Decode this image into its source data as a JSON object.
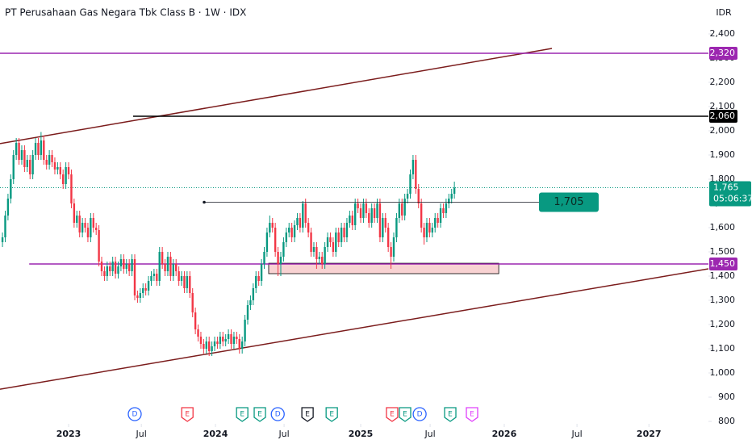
{
  "chart_data": {
    "type": "candlestick",
    "title": "PT Perusahaan Gas Negara Tbk Class B · 1W · IDX",
    "currency": "IDR",
    "up_color": "#089981",
    "down_color": "#f23645",
    "grid": false,
    "xlim": [
      -0.9,
      256.2
    ],
    "ylim": [
      800,
      2540
    ],
    "xticks": [
      {
        "value": 24,
        "label": "2023"
      },
      {
        "value": 50.4,
        "label": "Jul"
      },
      {
        "value": 77.3,
        "label": "2024"
      },
      {
        "value": 102.2,
        "label": "Jul"
      },
      {
        "value": 130,
        "label": "2025"
      },
      {
        "value": 155.2,
        "label": "Jul"
      },
      {
        "value": 182.1,
        "label": "2026"
      },
      {
        "value": 208.5,
        "label": "Jul"
      },
      {
        "value": 234.6,
        "label": "2027"
      }
    ],
    "yticks": [
      800,
      900,
      {
        "value": 1000,
        "label": "1,000"
      },
      {
        "value": 1100,
        "label": "1,100"
      },
      {
        "value": 1200,
        "label": "1,200"
      },
      {
        "value": 1300,
        "label": "1,300"
      },
      {
        "value": 1400,
        "label": "1,400"
      },
      {
        "value": 1500,
        "label": "1,500"
      },
      {
        "value": 1600,
        "label": "1,600"
      },
      {
        "value": 1700,
        "label": "1,700"
      },
      {
        "value": 1800,
        "label": "1,800"
      },
      {
        "value": 1900,
        "label": "1,900"
      },
      {
        "value": 2000,
        "label": "2,000"
      },
      {
        "value": 2100,
        "label": "2,100"
      },
      {
        "value": 2200,
        "label": "2,200"
      },
      {
        "value": 2300,
        "label": "2,300"
      },
      {
        "value": 2400,
        "label": "2,400"
      }
    ],
    "candles": [
      [
        1540,
        1580,
        1520,
        1560
      ],
      [
        1560,
        1670,
        1540,
        1650
      ],
      [
        1650,
        1740,
        1630,
        1720
      ],
      [
        1720,
        1820,
        1700,
        1800
      ],
      [
        1800,
        1920,
        1780,
        1900
      ],
      [
        1900,
        1970,
        1880,
        1950
      ],
      [
        1950,
        1970,
        1860,
        1880
      ],
      [
        1880,
        1940,
        1860,
        1920
      ],
      [
        1920,
        1940,
        1830,
        1850
      ],
      [
        1850,
        1900,
        1830,
        1880
      ],
      [
        1880,
        1900,
        1800,
        1820
      ],
      [
        1820,
        1920,
        1800,
        1900
      ],
      [
        1900,
        1970,
        1880,
        1950
      ],
      [
        1950,
        1970,
        1880,
        1900
      ],
      [
        1900,
        1995,
        1880,
        1960
      ],
      [
        1960,
        1980,
        1860,
        1880
      ],
      [
        1880,
        1900,
        1840,
        1860
      ],
      [
        1860,
        1920,
        1840,
        1900
      ],
      [
        1900,
        1920,
        1850,
        1870
      ],
      [
        1870,
        1890,
        1820,
        1840
      ],
      [
        1840,
        1870,
        1820,
        1850
      ],
      [
        1850,
        1870,
        1800,
        1820
      ],
      [
        1820,
        1840,
        1760,
        1780
      ],
      [
        1780,
        1870,
        1760,
        1850
      ],
      [
        1850,
        1870,
        1800,
        1820
      ],
      [
        1820,
        1840,
        1680,
        1700
      ],
      [
        1700,
        1720,
        1600,
        1620
      ],
      [
        1620,
        1670,
        1600,
        1650
      ],
      [
        1650,
        1670,
        1560,
        1580
      ],
      [
        1580,
        1640,
        1560,
        1620
      ],
      [
        1620,
        1640,
        1580,
        1600
      ],
      [
        1600,
        1620,
        1540,
        1560
      ],
      [
        1560,
        1660,
        1540,
        1640
      ],
      [
        1640,
        1660,
        1580,
        1600
      ],
      [
        1600,
        1620,
        1570,
        1590
      ],
      [
        1590,
        1610,
        1440,
        1460
      ],
      [
        1460,
        1480,
        1400,
        1420
      ],
      [
        1420,
        1440,
        1380,
        1400
      ],
      [
        1400,
        1460,
        1380,
        1440
      ],
      [
        1440,
        1460,
        1400,
        1420
      ],
      [
        1420,
        1480,
        1400,
        1460
      ],
      [
        1460,
        1480,
        1390,
        1410
      ],
      [
        1410,
        1460,
        1390,
        1440
      ],
      [
        1440,
        1490,
        1420,
        1470
      ],
      [
        1470,
        1490,
        1410,
        1430
      ],
      [
        1430,
        1470,
        1410,
        1450
      ],
      [
        1450,
        1470,
        1400,
        1420
      ],
      [
        1420,
        1490,
        1400,
        1470
      ],
      [
        1470,
        1490,
        1300,
        1320
      ],
      [
        1320,
        1340,
        1290,
        1310
      ],
      [
        1310,
        1350,
        1290,
        1330
      ],
      [
        1330,
        1370,
        1310,
        1350
      ],
      [
        1350,
        1370,
        1320,
        1340
      ],
      [
        1340,
        1400,
        1320,
        1380
      ],
      [
        1380,
        1420,
        1360,
        1400
      ],
      [
        1400,
        1430,
        1380,
        1410
      ],
      [
        1410,
        1430,
        1360,
        1380
      ],
      [
        1380,
        1520,
        1360,
        1500
      ],
      [
        1500,
        1520,
        1430,
        1450
      ],
      [
        1450,
        1470,
        1400,
        1420
      ],
      [
        1420,
        1500,
        1400,
        1480
      ],
      [
        1480,
        1500,
        1380,
        1400
      ],
      [
        1400,
        1470,
        1380,
        1450
      ],
      [
        1450,
        1470,
        1400,
        1420
      ],
      [
        1420,
        1440,
        1360,
        1380
      ],
      [
        1380,
        1420,
        1360,
        1400
      ],
      [
        1400,
        1420,
        1330,
        1350
      ],
      [
        1350,
        1420,
        1330,
        1400
      ],
      [
        1400,
        1420,
        1310,
        1330
      ],
      [
        1330,
        1350,
        1230,
        1250
      ],
      [
        1250,
        1270,
        1160,
        1180
      ],
      [
        1180,
        1200,
        1130,
        1150
      ],
      [
        1150,
        1170,
        1100,
        1120
      ],
      [
        1120,
        1140,
        1080,
        1100
      ],
      [
        1100,
        1150,
        1080,
        1130
      ],
      [
        1130,
        1150,
        1070,
        1090
      ],
      [
        1090,
        1130,
        1070,
        1110
      ],
      [
        1110,
        1150,
        1090,
        1130
      ],
      [
        1130,
        1150,
        1100,
        1120
      ],
      [
        1120,
        1170,
        1100,
        1150
      ],
      [
        1150,
        1170,
        1110,
        1130
      ],
      [
        1130,
        1160,
        1110,
        1140
      ],
      [
        1140,
        1180,
        1120,
        1160
      ],
      [
        1160,
        1180,
        1100,
        1120
      ],
      [
        1120,
        1170,
        1100,
        1150
      ],
      [
        1150,
        1170,
        1120,
        1140
      ],
      [
        1140,
        1160,
        1080,
        1100
      ],
      [
        1100,
        1150,
        1080,
        1130
      ],
      [
        1130,
        1240,
        1110,
        1220
      ],
      [
        1220,
        1300,
        1200,
        1280
      ],
      [
        1280,
        1320,
        1260,
        1300
      ],
      [
        1300,
        1370,
        1280,
        1350
      ],
      [
        1350,
        1420,
        1330,
        1400
      ],
      [
        1400,
        1420,
        1360,
        1380
      ],
      [
        1380,
        1470,
        1360,
        1450
      ],
      [
        1450,
        1520,
        1430,
        1500
      ],
      [
        1500,
        1600,
        1480,
        1580
      ],
      [
        1580,
        1650,
        1560,
        1620
      ],
      [
        1620,
        1640,
        1580,
        1600
      ],
      [
        1600,
        1620,
        1480,
        1500
      ],
      [
        1500,
        1520,
        1400,
        1450
      ],
      [
        1450,
        1500,
        1400,
        1480
      ],
      [
        1480,
        1560,
        1460,
        1540
      ],
      [
        1540,
        1600,
        1520,
        1580
      ],
      [
        1580,
        1620,
        1560,
        1600
      ],
      [
        1600,
        1620,
        1540,
        1560
      ],
      [
        1560,
        1630,
        1540,
        1610
      ],
      [
        1610,
        1660,
        1590,
        1640
      ],
      [
        1640,
        1660,
        1580,
        1600
      ],
      [
        1600,
        1710,
        1580,
        1700
      ],
      [
        1700,
        1720,
        1600,
        1620
      ],
      [
        1620,
        1640,
        1560,
        1580
      ],
      [
        1580,
        1600,
        1480,
        1500
      ],
      [
        1500,
        1540,
        1480,
        1520
      ],
      [
        1520,
        1540,
        1430,
        1470
      ],
      [
        1470,
        1500,
        1450,
        1480
      ],
      [
        1480,
        1500,
        1430,
        1450
      ],
      [
        1450,
        1540,
        1430,
        1520
      ],
      [
        1520,
        1580,
        1500,
        1560
      ],
      [
        1560,
        1580,
        1520,
        1540
      ],
      [
        1540,
        1560,
        1480,
        1500
      ],
      [
        1500,
        1600,
        1480,
        1580
      ],
      [
        1580,
        1600,
        1520,
        1540
      ],
      [
        1540,
        1620,
        1520,
        1600
      ],
      [
        1600,
        1620,
        1540,
        1560
      ],
      [
        1560,
        1640,
        1540,
        1620
      ],
      [
        1620,
        1670,
        1600,
        1650
      ],
      [
        1650,
        1670,
        1590,
        1610
      ],
      [
        1610,
        1720,
        1590,
        1700
      ],
      [
        1700,
        1720,
        1660,
        1680
      ],
      [
        1680,
        1700,
        1620,
        1640
      ],
      [
        1640,
        1720,
        1620,
        1700
      ],
      [
        1700,
        1720,
        1640,
        1660
      ],
      [
        1660,
        1680,
        1600,
        1620
      ],
      [
        1620,
        1700,
        1600,
        1680
      ],
      [
        1680,
        1700,
        1620,
        1640
      ],
      [
        1640,
        1720,
        1620,
        1700
      ],
      [
        1700,
        1720,
        1540,
        1560
      ],
      [
        1560,
        1660,
        1540,
        1640
      ],
      [
        1640,
        1660,
        1580,
        1600
      ],
      [
        1600,
        1620,
        1500,
        1520
      ],
      [
        1520,
        1540,
        1430,
        1480
      ],
      [
        1480,
        1580,
        1460,
        1560
      ],
      [
        1560,
        1660,
        1540,
        1640
      ],
      [
        1640,
        1720,
        1620,
        1700
      ],
      [
        1700,
        1720,
        1630,
        1650
      ],
      [
        1650,
        1740,
        1630,
        1720
      ],
      [
        1720,
        1760,
        1700,
        1740
      ],
      [
        1740,
        1840,
        1720,
        1820
      ],
      [
        1820,
        1900,
        1800,
        1880
      ],
      [
        1880,
        1900,
        1740,
        1760
      ],
      [
        1760,
        1780,
        1680,
        1700
      ],
      [
        1700,
        1720,
        1580,
        1600
      ],
      [
        1600,
        1620,
        1530,
        1560
      ],
      [
        1560,
        1640,
        1540,
        1620
      ],
      [
        1620,
        1640,
        1560,
        1580
      ],
      [
        1580,
        1620,
        1560,
        1600
      ],
      [
        1600,
        1660,
        1580,
        1640
      ],
      [
        1640,
        1660,
        1600,
        1620
      ],
      [
        1620,
        1700,
        1600,
        1680
      ],
      [
        1680,
        1700,
        1640,
        1660
      ],
      [
        1660,
        1720,
        1640,
        1700
      ],
      [
        1700,
        1740,
        1680,
        1720
      ],
      [
        1720,
        1760,
        1700,
        1740
      ],
      [
        1740,
        1790,
        1720,
        1765
      ]
    ],
    "levels": [
      {
        "value": 2320,
        "label": "2,320",
        "color": "#9c27b0",
        "x_start": -0.9
      },
      {
        "value": 2060,
        "label": "2,060",
        "color": "#000000",
        "x_start": 47.4
      },
      {
        "value": 1450,
        "label": "1,450",
        "color": "#9c27b0",
        "x_start": 9.7
      }
    ],
    "price_line": {
      "value": 1705,
      "label": "1,705",
      "x_start": 73.2,
      "x_end": 194.7,
      "color": "#089981"
    },
    "last_price": {
      "value": 1765,
      "label": "1,765",
      "countdown": "05:06:37",
      "color": "#089981"
    },
    "zone": {
      "x": [
        96.6,
        180.1
      ],
      "y": [
        1410,
        1453
      ],
      "color": "#f8d2d2",
      "border": "#000000"
    },
    "trendlines": [
      {
        "points": [
          [
            -0.9,
            1947
          ],
          [
            199.4,
            2340
          ]
        ],
        "color": "#7b1c1c"
      },
      {
        "points": [
          [
            -0.9,
            933
          ],
          [
            256.2,
            1430
          ]
        ],
        "color": "#7b1c1c"
      }
    ],
    "events": [
      {
        "x": 48.0,
        "label": "D",
        "color": "#2962ff"
      },
      {
        "x": 67.1,
        "label": "E",
        "color": "#f23645"
      },
      {
        "x": 87.0,
        "label": "E",
        "color": "#089981"
      },
      {
        "x": 93.4,
        "label": "E",
        "color": "#089981"
      },
      {
        "x": 99.9,
        "label": "D",
        "color": "#2962ff"
      },
      {
        "x": 110.7,
        "label": "E",
        "color": "#131722"
      },
      {
        "x": 119.5,
        "label": "E",
        "color": "#089981"
      },
      {
        "x": 141.4,
        "label": "E",
        "color": "#f23645"
      },
      {
        "x": 146.1,
        "label": "E",
        "color": "#089981"
      },
      {
        "x": 151.4,
        "label": "D",
        "color": "#2962ff"
      },
      {
        "x": 162.5,
        "label": "E",
        "color": "#089981"
      },
      {
        "x": 170.4,
        "label": "E",
        "color": "#e040fb"
      }
    ]
  }
}
